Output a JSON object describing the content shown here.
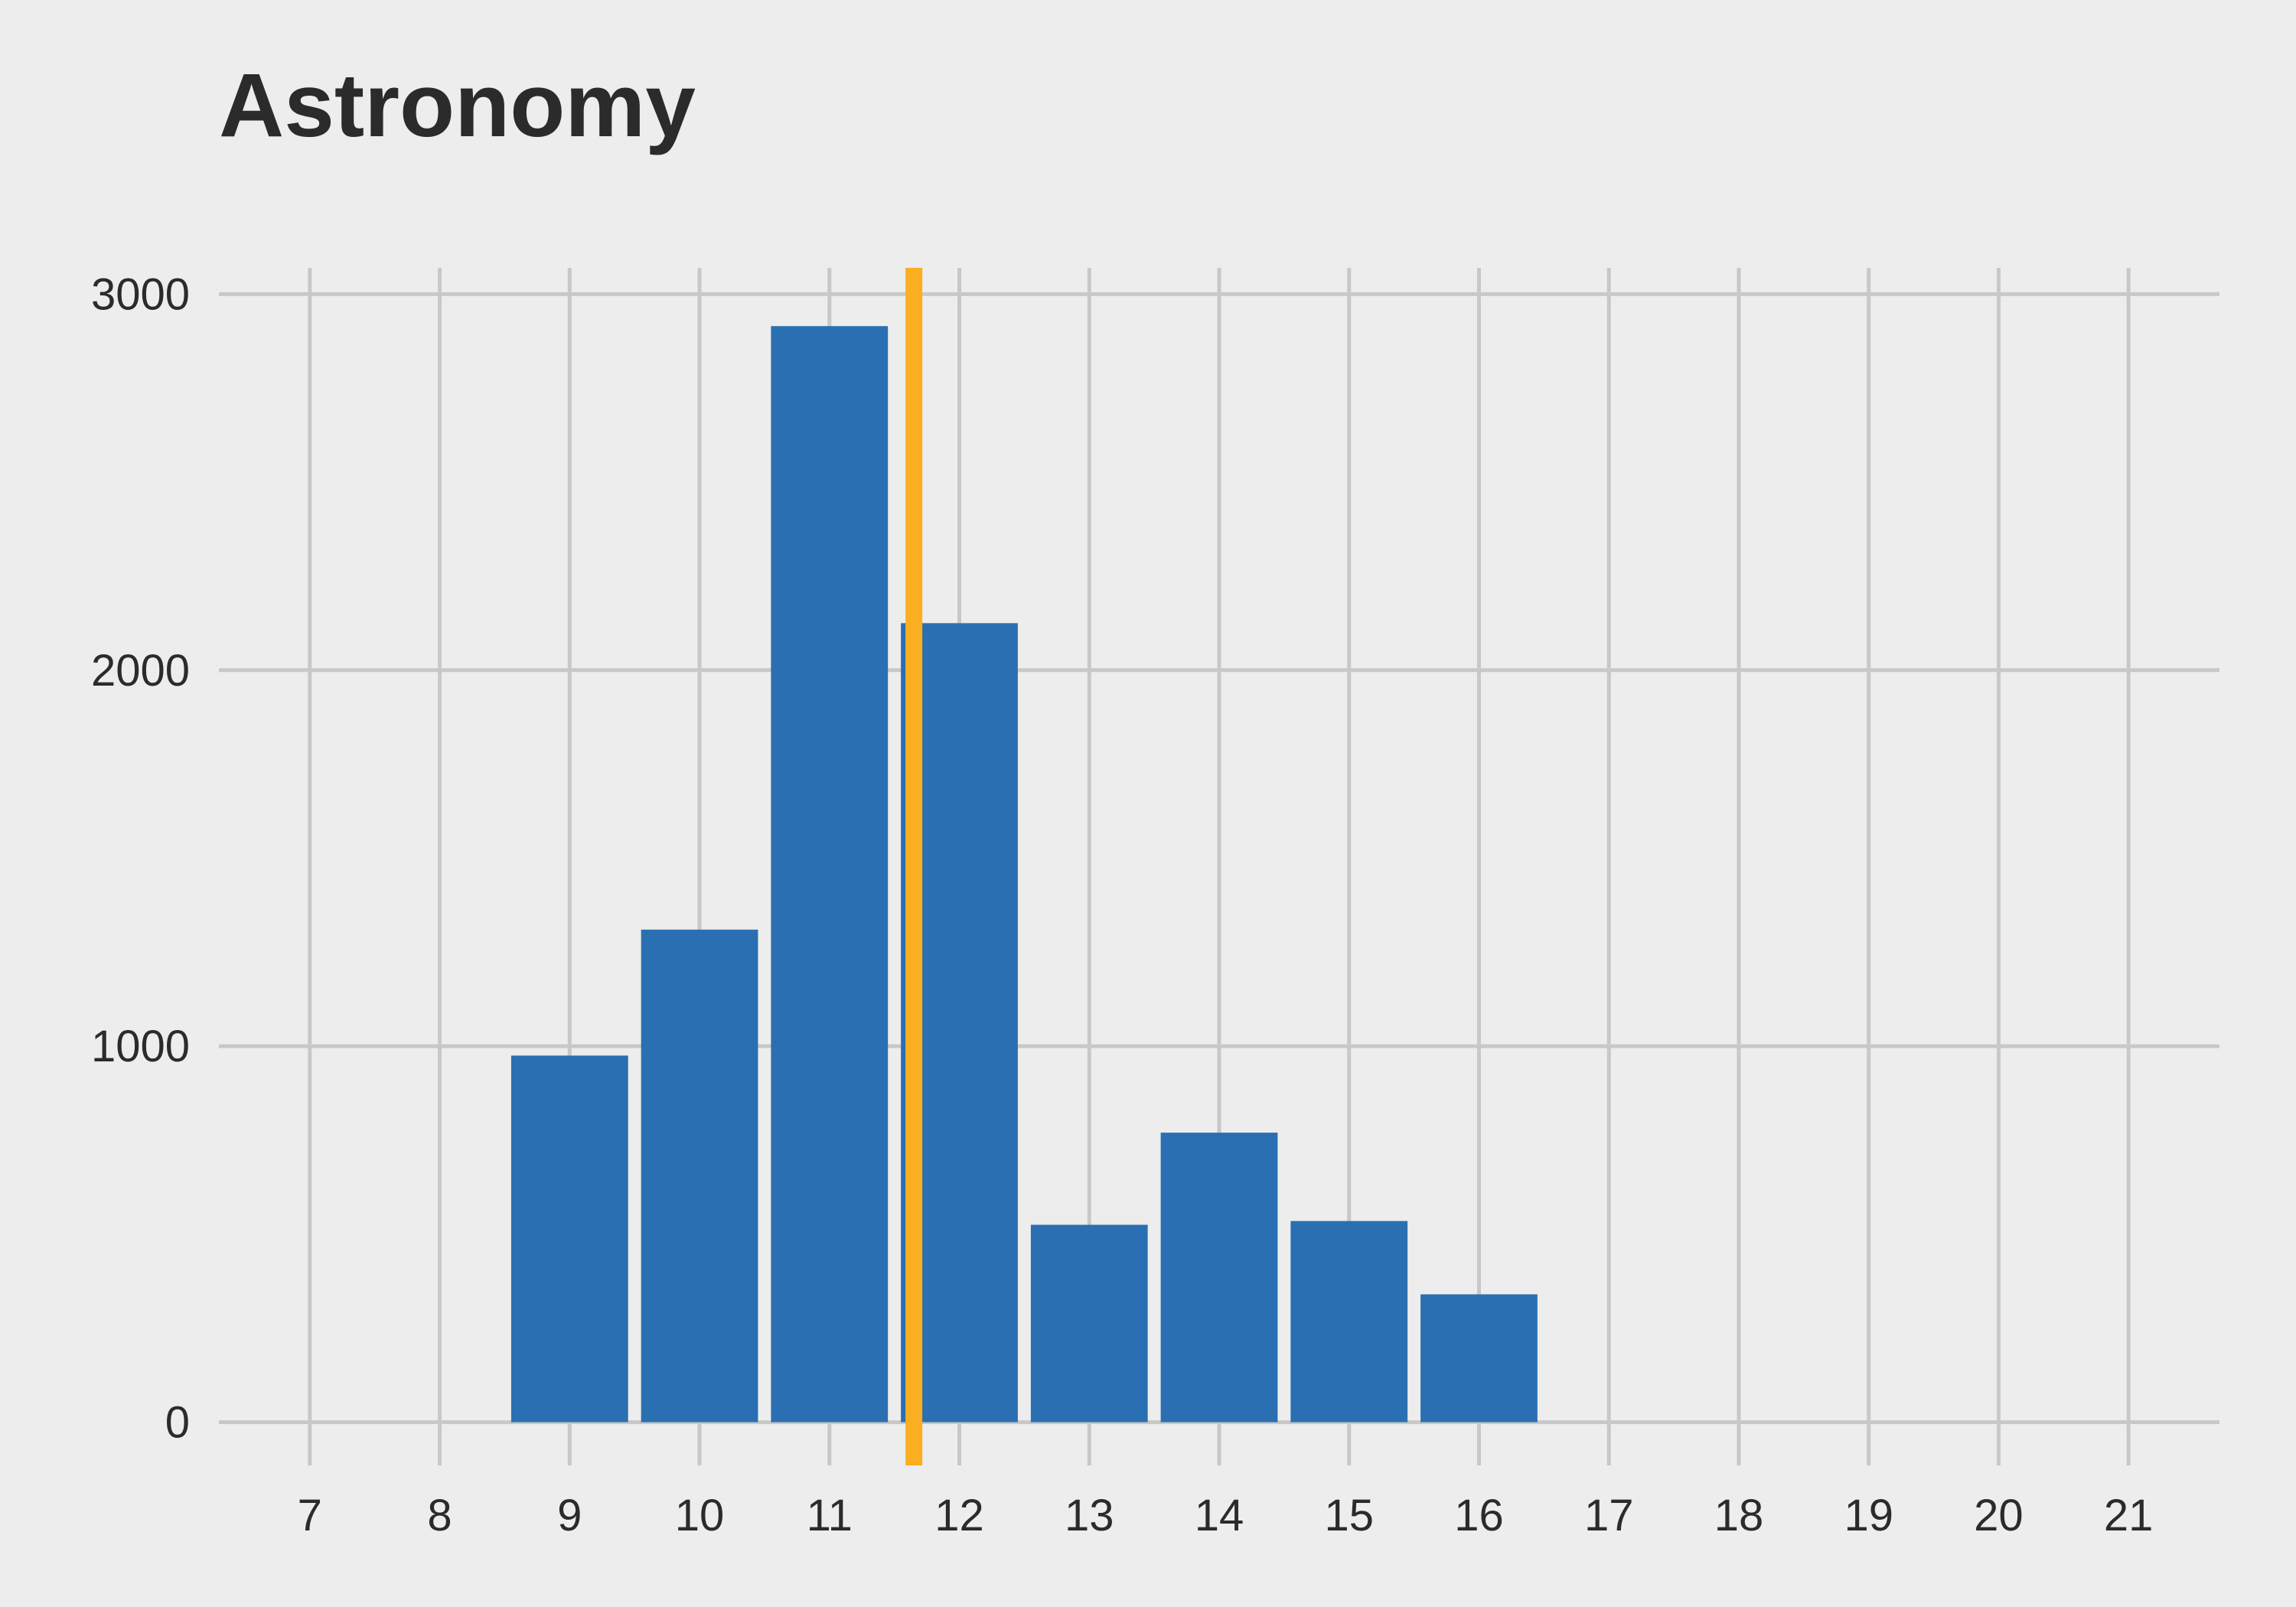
{
  "chart_data": {
    "type": "bar",
    "title": "Astronomy",
    "xlabel": "",
    "ylabel": "",
    "x": [
      9,
      10,
      11,
      12,
      13,
      14,
      15,
      16
    ],
    "values": [
      975,
      1310,
      2915,
      2125,
      525,
      770,
      535,
      340
    ],
    "xlim": [
      6.3,
      21.7
    ],
    "ylim": [
      -115,
      3070
    ],
    "x_ticks": [
      7,
      8,
      9,
      10,
      11,
      12,
      13,
      14,
      15,
      16,
      17,
      18,
      19,
      20,
      21
    ],
    "y_ticks": [
      0,
      1000,
      2000,
      3000
    ],
    "bar_width": 0.9,
    "reference_line": {
      "x": 11.65
    },
    "grid": true,
    "colors": {
      "background": "#ededed",
      "grid": "#c8c8c8",
      "bar": "#2a6fb1",
      "reference_line": "#fbae20",
      "text": "#2b2b2b"
    }
  }
}
